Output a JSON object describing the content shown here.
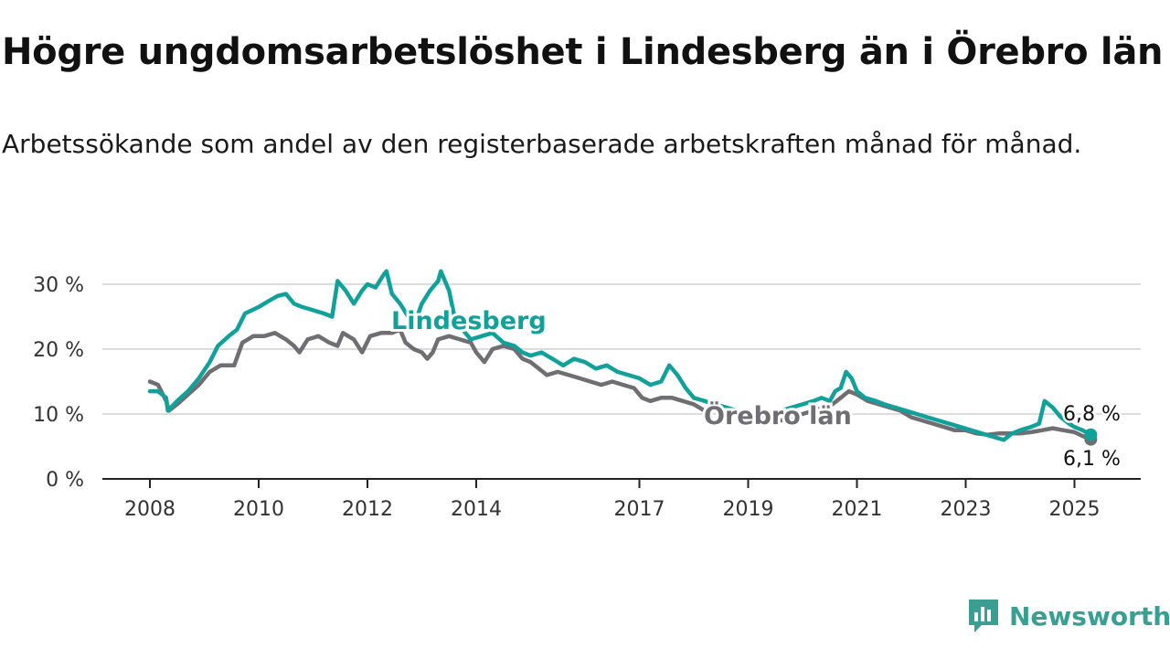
{
  "title": "Högre ungdomsarbetslöshet i Lindesberg än i Örebro län",
  "subtitle": "Arbetssökande som andel av den registerbaserade arbetskraften månad för månad.",
  "brand": {
    "name": "Newsworthy",
    "color": "#3a9e93",
    "icon": "bar-chart-speech-bubble-icon"
  },
  "colors": {
    "lindesberg": "#11a19a",
    "orebro": "#6f6e72",
    "grid": "#dcdcdc",
    "axis": "#222222"
  },
  "chart_data": {
    "type": "line",
    "y_tick_labels": [
      "0 %",
      "10 %",
      "20 %",
      "30 %"
    ],
    "y_ticks": [
      0,
      10,
      20,
      30
    ],
    "ylim": [
      0,
      32
    ],
    "x_tick_labels": [
      "2008",
      "2010",
      "2012",
      "2014",
      "2017",
      "2019",
      "2021",
      "2023",
      "2025"
    ],
    "x_ticks": [
      2008,
      2010,
      2012,
      2014,
      2017,
      2019,
      2021,
      2023,
      2025
    ],
    "xlim": [
      2008,
      2025.5
    ],
    "grid": true,
    "series": [
      {
        "name": "Lindesberg",
        "key": "lindesberg",
        "end_label": "6,8 %",
        "points": [
          [
            2008.0,
            13.5
          ],
          [
            2008.15,
            13.5
          ],
          [
            2008.3,
            12.5
          ],
          [
            2008.33,
            10.5
          ],
          [
            2008.5,
            12.0
          ],
          [
            2008.7,
            13.5
          ],
          [
            2008.9,
            15.5
          ],
          [
            2009.1,
            18.0
          ],
          [
            2009.25,
            20.5
          ],
          [
            2009.45,
            22.0
          ],
          [
            2009.6,
            23.0
          ],
          [
            2009.75,
            25.5
          ],
          [
            2010.0,
            26.5
          ],
          [
            2010.2,
            27.5
          ],
          [
            2010.35,
            28.2
          ],
          [
            2010.5,
            28.5
          ],
          [
            2010.65,
            27.0
          ],
          [
            2010.8,
            26.5
          ],
          [
            2011.0,
            26.0
          ],
          [
            2011.2,
            25.5
          ],
          [
            2011.35,
            25.0
          ],
          [
            2011.45,
            30.5
          ],
          [
            2011.6,
            29.0
          ],
          [
            2011.75,
            27.0
          ],
          [
            2011.9,
            29.0
          ],
          [
            2012.0,
            30.0
          ],
          [
            2012.15,
            29.5
          ],
          [
            2012.3,
            31.5
          ],
          [
            2012.35,
            32.0
          ],
          [
            2012.45,
            28.5
          ],
          [
            2012.6,
            27.0
          ],
          [
            2012.75,
            25.0
          ],
          [
            2012.85,
            23.5
          ],
          [
            2013.0,
            27.0
          ],
          [
            2013.15,
            29.0
          ],
          [
            2013.3,
            30.5
          ],
          [
            2013.35,
            32.0
          ],
          [
            2013.5,
            29.0
          ],
          [
            2013.6,
            25.0
          ],
          [
            2013.75,
            23.0
          ],
          [
            2013.9,
            21.5
          ],
          [
            2014.1,
            22.0
          ],
          [
            2014.3,
            22.5
          ],
          [
            2014.5,
            21.0
          ],
          [
            2014.7,
            20.5
          ],
          [
            2014.85,
            19.5
          ],
          [
            2015.0,
            19.0
          ],
          [
            2015.2,
            19.5
          ],
          [
            2015.4,
            18.5
          ],
          [
            2015.6,
            17.5
          ],
          [
            2015.8,
            18.5
          ],
          [
            2016.0,
            18.0
          ],
          [
            2016.2,
            17.0
          ],
          [
            2016.4,
            17.5
          ],
          [
            2016.6,
            16.5
          ],
          [
            2016.8,
            16.0
          ],
          [
            2017.0,
            15.5
          ],
          [
            2017.2,
            14.5
          ],
          [
            2017.4,
            15.0
          ],
          [
            2017.55,
            17.5
          ],
          [
            2017.7,
            16.0
          ],
          [
            2017.85,
            14.0
          ],
          [
            2018.0,
            12.5
          ],
          [
            2018.2,
            12.0
          ],
          [
            2018.4,
            11.5
          ],
          [
            2018.6,
            11.0
          ],
          [
            2018.8,
            10.5
          ],
          [
            2019.0,
            10.0
          ],
          [
            2019.2,
            9.5
          ],
          [
            2019.4,
            10.0
          ],
          [
            2019.6,
            10.5
          ],
          [
            2019.8,
            11.0
          ],
          [
            2020.0,
            11.5
          ],
          [
            2020.2,
            12.0
          ],
          [
            2020.35,
            12.5
          ],
          [
            2020.5,
            12.0
          ],
          [
            2020.6,
            13.5
          ],
          [
            2020.7,
            14.0
          ],
          [
            2020.8,
            16.5
          ],
          [
            2020.9,
            15.5
          ],
          [
            2021.0,
            13.5
          ],
          [
            2021.15,
            12.5
          ],
          [
            2021.35,
            12.0
          ],
          [
            2021.5,
            11.5
          ],
          [
            2021.7,
            11.0
          ],
          [
            2021.9,
            10.5
          ],
          [
            2022.1,
            10.0
          ],
          [
            2022.3,
            9.5
          ],
          [
            2022.5,
            9.0
          ],
          [
            2022.7,
            8.5
          ],
          [
            2022.9,
            8.0
          ],
          [
            2023.1,
            7.5
          ],
          [
            2023.3,
            7.0
          ],
          [
            2023.5,
            6.5
          ],
          [
            2023.7,
            6.0
          ],
          [
            2023.85,
            7.0
          ],
          [
            2024.0,
            7.5
          ],
          [
            2024.2,
            8.0
          ],
          [
            2024.35,
            8.5
          ],
          [
            2024.45,
            12.0
          ],
          [
            2024.6,
            11.0
          ],
          [
            2024.75,
            9.5
          ],
          [
            2024.9,
            8.5
          ],
          [
            2025.0,
            8.0
          ],
          [
            2025.15,
            7.5
          ],
          [
            2025.3,
            6.8
          ]
        ]
      },
      {
        "name": "Örebro län",
        "key": "orebro",
        "end_label": "6,1 %",
        "points": [
          [
            2008.0,
            15.0
          ],
          [
            2008.15,
            14.5
          ],
          [
            2008.3,
            12.0
          ],
          [
            2008.35,
            10.5
          ],
          [
            2008.5,
            11.5
          ],
          [
            2008.7,
            13.0
          ],
          [
            2008.9,
            14.5
          ],
          [
            2009.1,
            16.5
          ],
          [
            2009.3,
            17.5
          ],
          [
            2009.55,
            17.5
          ],
          [
            2009.7,
            21.0
          ],
          [
            2009.9,
            22.0
          ],
          [
            2010.1,
            22.0
          ],
          [
            2010.3,
            22.5
          ],
          [
            2010.5,
            21.5
          ],
          [
            2010.65,
            20.5
          ],
          [
            2010.75,
            19.5
          ],
          [
            2010.9,
            21.5
          ],
          [
            2011.1,
            22.0
          ],
          [
            2011.3,
            21.0
          ],
          [
            2011.45,
            20.5
          ],
          [
            2011.55,
            22.5
          ],
          [
            2011.75,
            21.5
          ],
          [
            2011.9,
            19.5
          ],
          [
            2012.05,
            22.0
          ],
          [
            2012.25,
            22.5
          ],
          [
            2012.45,
            22.5
          ],
          [
            2012.6,
            23.0
          ],
          [
            2012.7,
            21.0
          ],
          [
            2012.85,
            20.0
          ],
          [
            2013.0,
            19.5
          ],
          [
            2013.1,
            18.5
          ],
          [
            2013.2,
            19.5
          ],
          [
            2013.3,
            21.5
          ],
          [
            2013.5,
            22.0
          ],
          [
            2013.7,
            21.5
          ],
          [
            2013.9,
            21.0
          ],
          [
            2014.0,
            19.5
          ],
          [
            2014.15,
            18.0
          ],
          [
            2014.3,
            20.0
          ],
          [
            2014.5,
            20.5
          ],
          [
            2014.7,
            20.0
          ],
          [
            2014.85,
            18.5
          ],
          [
            2015.0,
            18.0
          ],
          [
            2015.15,
            17.0
          ],
          [
            2015.3,
            16.0
          ],
          [
            2015.5,
            16.5
          ],
          [
            2015.7,
            16.0
          ],
          [
            2015.9,
            15.5
          ],
          [
            2016.1,
            15.0
          ],
          [
            2016.3,
            14.5
          ],
          [
            2016.5,
            15.0
          ],
          [
            2016.7,
            14.5
          ],
          [
            2016.9,
            14.0
          ],
          [
            2017.05,
            12.5
          ],
          [
            2017.2,
            12.0
          ],
          [
            2017.4,
            12.5
          ],
          [
            2017.6,
            12.5
          ],
          [
            2017.8,
            12.0
          ],
          [
            2018.0,
            11.5
          ],
          [
            2018.2,
            10.5
          ],
          [
            2018.4,
            11.0
          ],
          [
            2018.6,
            10.5
          ],
          [
            2018.8,
            10.0
          ],
          [
            2019.0,
            9.5
          ],
          [
            2019.2,
            9.0
          ],
          [
            2019.4,
            9.0
          ],
          [
            2019.6,
            9.0
          ],
          [
            2019.8,
            9.5
          ],
          [
            2020.0,
            10.0
          ],
          [
            2020.2,
            10.5
          ],
          [
            2020.4,
            11.0
          ],
          [
            2020.55,
            11.5
          ],
          [
            2020.7,
            12.5
          ],
          [
            2020.85,
            13.5
          ],
          [
            2021.0,
            13.0
          ],
          [
            2021.2,
            12.0
          ],
          [
            2021.4,
            11.5
          ],
          [
            2021.6,
            11.0
          ],
          [
            2021.8,
            10.5
          ],
          [
            2022.0,
            9.5
          ],
          [
            2022.2,
            9.0
          ],
          [
            2022.4,
            8.5
          ],
          [
            2022.6,
            8.0
          ],
          [
            2022.8,
            7.5
          ],
          [
            2023.0,
            7.5
          ],
          [
            2023.2,
            7.0
          ],
          [
            2023.4,
            6.8
          ],
          [
            2023.6,
            7.0
          ],
          [
            2023.8,
            7.0
          ],
          [
            2024.0,
            7.0
          ],
          [
            2024.2,
            7.2
          ],
          [
            2024.4,
            7.5
          ],
          [
            2024.6,
            7.8
          ],
          [
            2024.8,
            7.5
          ],
          [
            2025.0,
            7.2
          ],
          [
            2025.15,
            6.6
          ],
          [
            2025.3,
            6.1
          ]
        ]
      }
    ]
  }
}
